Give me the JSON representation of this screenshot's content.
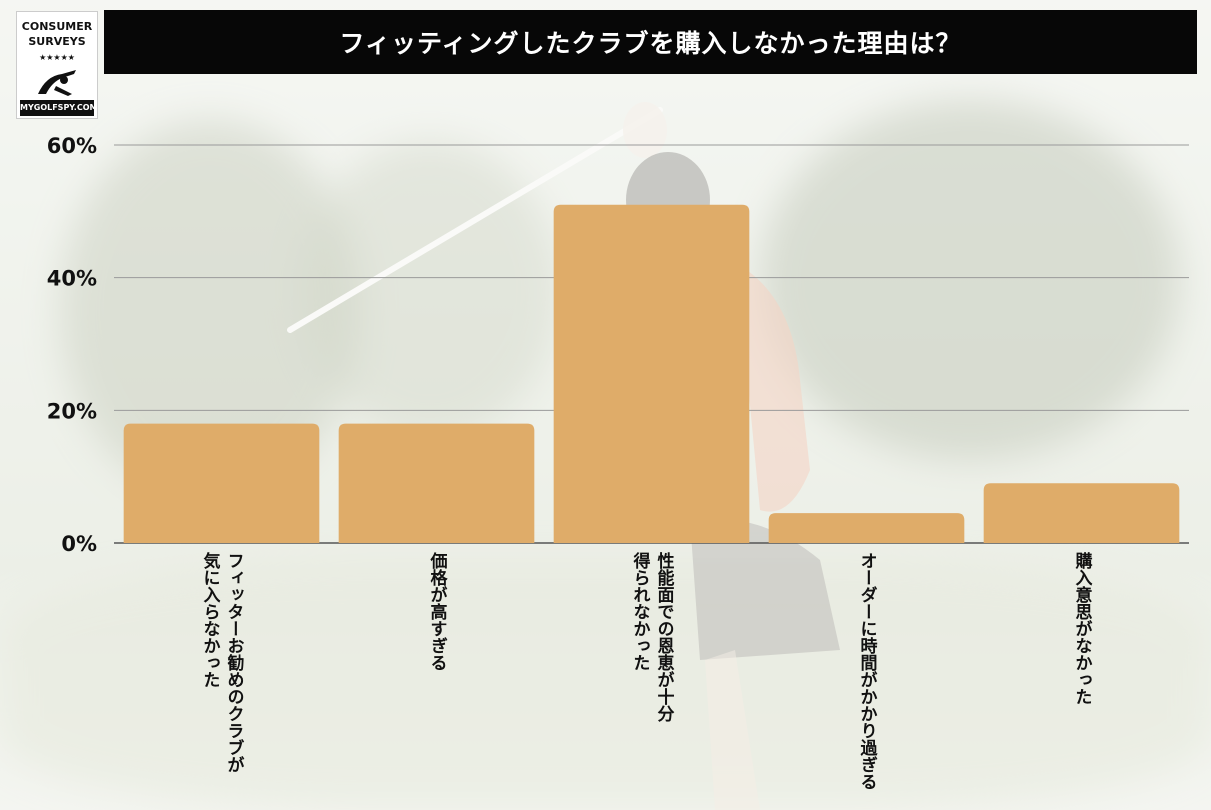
{
  "logo": {
    "line1": "CONSUMER",
    "line2": "SURVEYS",
    "stars": "★★★★★",
    "site": "MYGOLFSPY.COM"
  },
  "header": {
    "title": "フィッティングしたクラブを購入しなかった理由は？"
  },
  "colors": {
    "bar": "#dfac69",
    "title_bg": "#070707",
    "grid": "#9a9a9a"
  },
  "chart_data": {
    "type": "bar",
    "title": "フィッティングしたクラブを購入しなかった理由は？",
    "categories": [
      "フィッターお勧めのクラブが\n気に入らなかった",
      "価格が高すぎる",
      "性能面での恩恵が十分\n得られなかった",
      "オーダーに時間がかかり過ぎる",
      "購入意思がなかった"
    ],
    "values": [
      18,
      18,
      51,
      4.5,
      9
    ],
    "ylim": [
      0,
      60
    ],
    "yticks": [
      0,
      20,
      40,
      60
    ],
    "ytick_labels": [
      "0%",
      "20%",
      "40%",
      "60%"
    ],
    "grid": true,
    "legend": "none"
  }
}
